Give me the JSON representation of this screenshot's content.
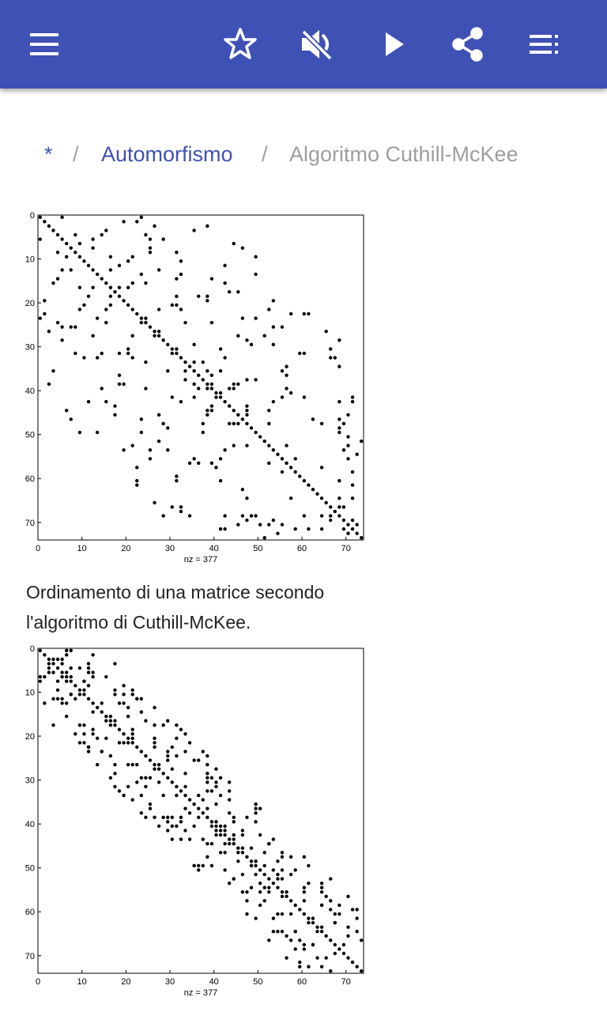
{
  "breadcrumb": {
    "items": [
      "*",
      "Automorfismo",
      "Algoritmo Cuthill-McKee"
    ],
    "separator": "/"
  },
  "figures": [
    {
      "xlim": [
        0,
        74
      ],
      "ylim": [
        0,
        74
      ],
      "xticks": [
        0,
        10,
        20,
        30,
        40,
        50,
        60,
        70
      ],
      "yticks": [
        0,
        10,
        20,
        30,
        40,
        50,
        60,
        70
      ],
      "xlabel": "nz = 377"
    },
    {
      "xlim": [
        0,
        74
      ],
      "ylim": [
        0,
        74
      ],
      "xticks": [
        0,
        10,
        20,
        30,
        40,
        50,
        60,
        70
      ],
      "yticks": [
        0,
        10,
        20,
        30,
        40,
        50,
        60,
        70
      ],
      "xlabel": "nz = 377"
    }
  ],
  "caption": "Ordinamento di una matrice secondo l'algoritmo di Cuthill-McKee."
}
